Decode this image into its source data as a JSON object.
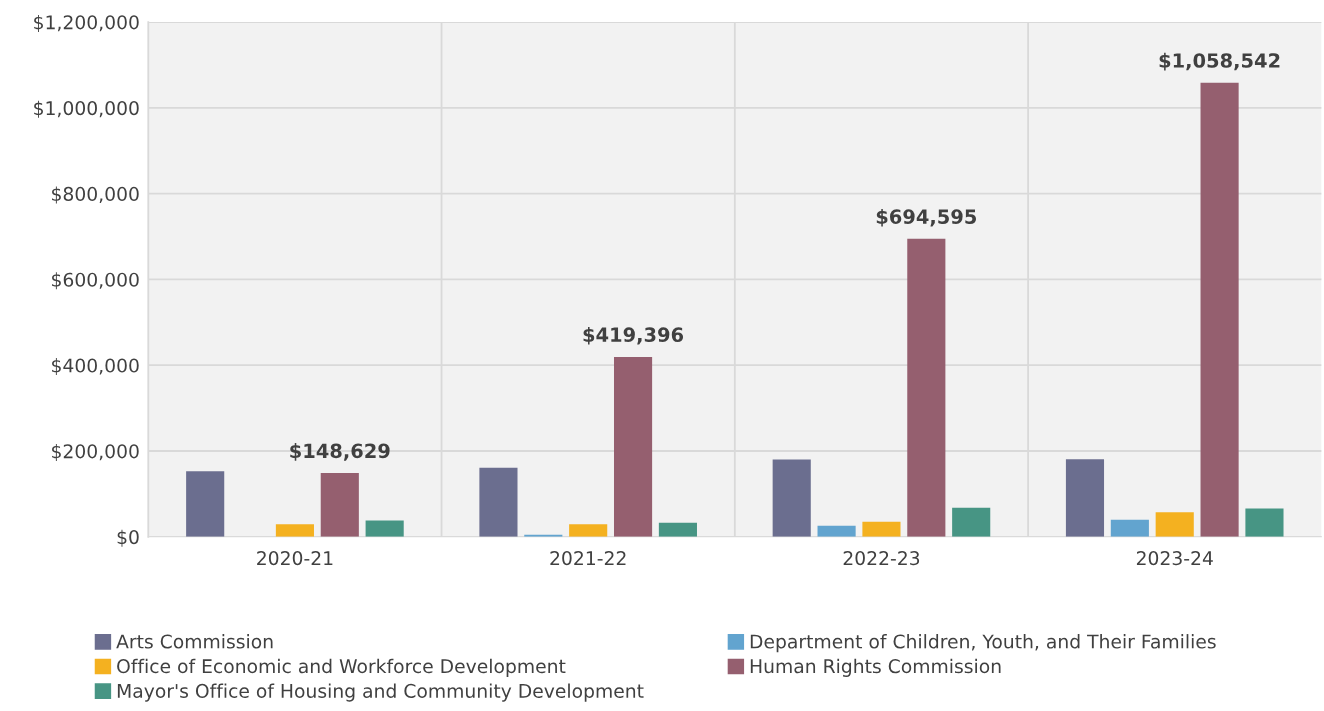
{
  "chart_data": {
    "type": "bar",
    "categories": [
      "2020-21",
      "2021-22",
      "2022-23",
      "2023-24"
    ],
    "series": [
      {
        "name": "Arts Commission",
        "color": "#6b6e8f",
        "values": [
          153000,
          161000,
          180000,
          181000
        ]
      },
      {
        "name": "Department of Children, Youth, and Their Families",
        "color": "#62a4cf",
        "values": [
          null,
          5000,
          26000,
          40000
        ]
      },
      {
        "name": "Office of Economic and Workforce Development",
        "color": "#f4b120",
        "values": [
          29000,
          29000,
          35000,
          57000
        ]
      },
      {
        "name": "Human Rights Commission",
        "color": "#955f6f",
        "values": [
          148629,
          419396,
          694595,
          1058542
        ],
        "value_labels": [
          "$148,629",
          "$419,396",
          "$694,595",
          "$1,058,542"
        ]
      },
      {
        "name": "Mayor's Office of Housing and Community Development",
        "color": "#479584",
        "values": [
          38000,
          33000,
          68000,
          66000
        ]
      }
    ],
    "ylim": [
      0,
      1200000
    ],
    "yticks": [
      {
        "value": 0,
        "label": "$0"
      },
      {
        "value": 200000,
        "label": "$200,000"
      },
      {
        "value": 400000,
        "label": "$400,000"
      },
      {
        "value": 600000,
        "label": "$600,000"
      },
      {
        "value": 800000,
        "label": "$800,000"
      },
      {
        "value": 1000000,
        "label": "$1,000,000"
      },
      {
        "value": 1200000,
        "label": "$1,200,000"
      }
    ],
    "grid": true,
    "legend": "bottom"
  }
}
